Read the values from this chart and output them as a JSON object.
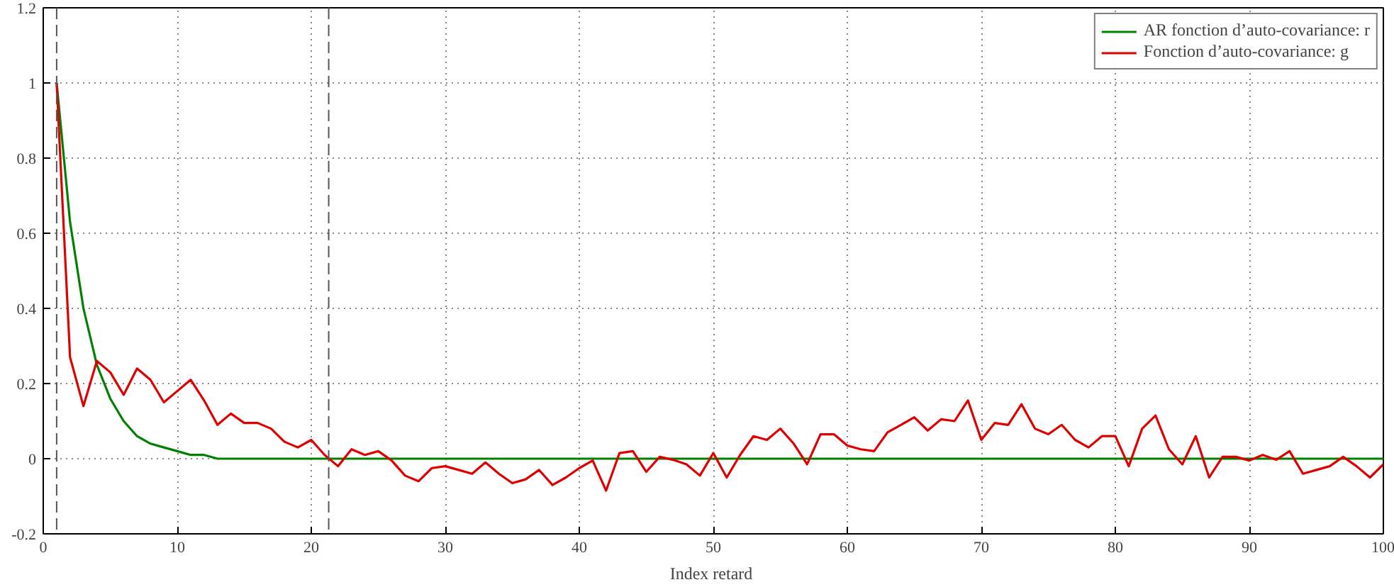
{
  "chart_data": {
    "type": "line",
    "xlabel": "Index  retard",
    "xlim": [
      0,
      100
    ],
    "xticks": [
      0,
      10,
      20,
      30,
      40,
      50,
      60,
      70,
      80,
      90,
      100
    ],
    "ylim": [
      -0.2,
      1.2
    ],
    "yticks": [
      -0.2,
      0,
      0.2,
      0.4,
      0.6,
      0.8,
      1,
      1.2
    ],
    "grid": true,
    "legend": "top right",
    "line_style": "solid",
    "marker": "none",
    "series": [
      {
        "name": "AR fonction d’auto-covariance: r",
        "color": "#008000",
        "x": [
          1,
          2,
          3,
          4,
          5,
          6,
          7,
          8,
          9,
          10,
          11,
          12,
          13,
          14,
          100
        ],
        "values": [
          1,
          0.63,
          0.4,
          0.25,
          0.16,
          0.1,
          0.06,
          0.04,
          0.03,
          0.02,
          0.01,
          0.01,
          0,
          0,
          0
        ]
      },
      {
        "name": "Fonction d’auto-covariance: g",
        "color": "#dd0000",
        "x": [
          1,
          2,
          3,
          4,
          5,
          6,
          7,
          8,
          9,
          10,
          11,
          12,
          13,
          14,
          15,
          16,
          17,
          18,
          19,
          20,
          21,
          22,
          23,
          24,
          25,
          26,
          27,
          28,
          29,
          30,
          31,
          32,
          33,
          34,
          35,
          36,
          37,
          38,
          39,
          40,
          41,
          42,
          43,
          44,
          45,
          46,
          47,
          48,
          49,
          50,
          51,
          52,
          53,
          54,
          55,
          56,
          57,
          58,
          59,
          60,
          61,
          62,
          63,
          64,
          65,
          66,
          67,
          68,
          69,
          70,
          71,
          72,
          73,
          74,
          75,
          76,
          77,
          78,
          79,
          80,
          81,
          82,
          83,
          84,
          85,
          86,
          87,
          88,
          89,
          90,
          91,
          92,
          93,
          94,
          95,
          96,
          97,
          98,
          99,
          100
        ],
        "values": [
          1,
          0.27,
          0.14,
          0.26,
          0.23,
          0.17,
          0.24,
          0.21,
          0.15,
          0.18,
          0.21,
          0.155,
          0.09,
          0.12,
          0.095,
          0.095,
          0.08,
          0.045,
          0.03,
          0.05,
          0.01,
          -0.02,
          0.025,
          0.01,
          0.02,
          -0.005,
          -0.045,
          -0.06,
          -0.025,
          -0.02,
          -0.03,
          -0.04,
          -0.01,
          -0.04,
          -0.065,
          -0.055,
          -0.03,
          -0.07,
          -0.05,
          -0.025,
          -0.005,
          -0.085,
          0.015,
          0.02,
          -0.035,
          0.005,
          -0.003,
          -0.015,
          -0.045,
          0.015,
          -0.05,
          0.01,
          0.06,
          0.05,
          0.08,
          0.04,
          -0.015,
          0.065,
          0.065,
          0.035,
          0.025,
          0.02,
          0.07,
          0.09,
          0.11,
          0.075,
          0.105,
          0.1,
          0.155,
          0.05,
          0.095,
          0.09,
          0.145,
          0.08,
          0.065,
          0.09,
          0.05,
          0.03,
          0.06,
          0.06,
          -0.02,
          0.08,
          0.115,
          0.025,
          -0.015,
          0.06,
          -0.05,
          0.005,
          0.005,
          -0.005,
          0.01,
          -0.003,
          0.02,
          -0.04,
          -0.03,
          -0.02,
          0.005,
          -0.02,
          -0.05,
          -0.015
        ]
      }
    ],
    "ref_lines": [
      {
        "axis": "x",
        "value": 1,
        "color": "#555555",
        "line_style": "dashed"
      },
      {
        "axis": "x",
        "value": 21.3,
        "color": "#555555",
        "line_style": "dashed"
      }
    ]
  }
}
